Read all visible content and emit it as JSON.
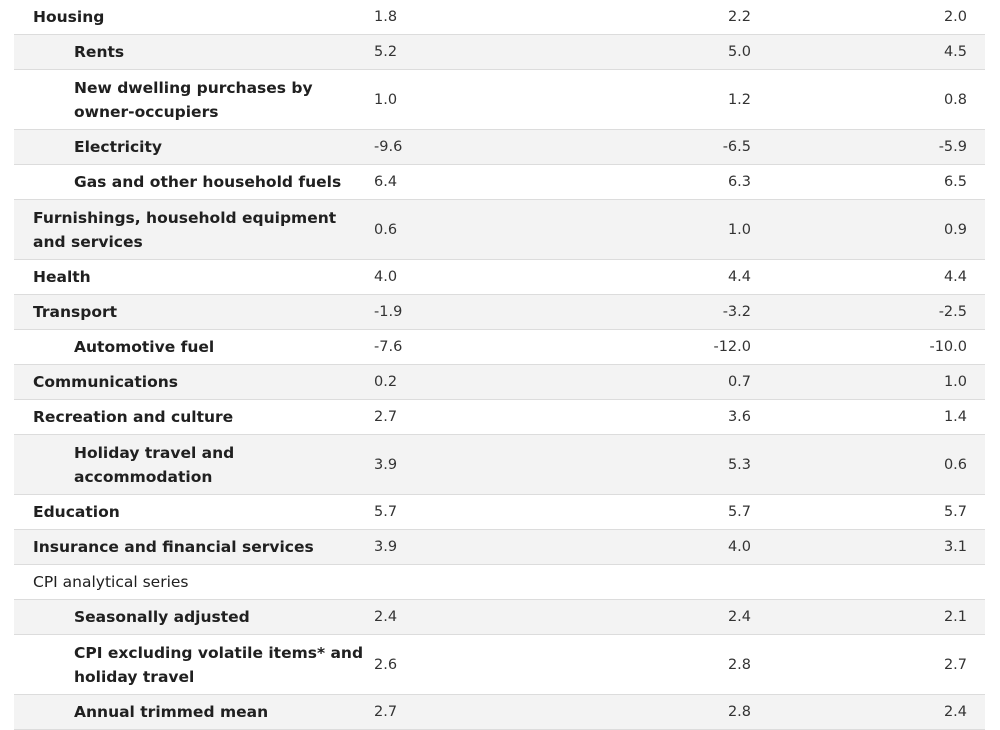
{
  "table": {
    "rows": [
      {
        "label": "Housing",
        "indent": false,
        "bold": true,
        "values": [
          "1.8",
          "2.2",
          "2.0"
        ]
      },
      {
        "label": "Rents",
        "indent": true,
        "bold": true,
        "values": [
          "5.2",
          "5.0",
          "4.5"
        ]
      },
      {
        "label": "New dwelling purchases by owner-occupiers",
        "indent": true,
        "bold": true,
        "values": [
          "1.0",
          "1.2",
          "0.8"
        ]
      },
      {
        "label": "Electricity",
        "indent": true,
        "bold": true,
        "values": [
          "-9.6",
          "-6.5",
          "-5.9"
        ]
      },
      {
        "label": "Gas and other household fuels",
        "indent": true,
        "bold": true,
        "values": [
          "6.4",
          "6.3",
          "6.5"
        ]
      },
      {
        "label": "Furnishings, household equipment and services",
        "indent": false,
        "bold": true,
        "values": [
          "0.6",
          "1.0",
          "0.9"
        ]
      },
      {
        "label": "Health",
        "indent": false,
        "bold": true,
        "values": [
          "4.0",
          "4.4",
          "4.4"
        ]
      },
      {
        "label": "Transport",
        "indent": false,
        "bold": true,
        "values": [
          "-1.9",
          "-3.2",
          "-2.5"
        ]
      },
      {
        "label": "Automotive fuel",
        "indent": true,
        "bold": true,
        "values": [
          "-7.6",
          "-12.0",
          "-10.0"
        ]
      },
      {
        "label": "Communications",
        "indent": false,
        "bold": true,
        "values": [
          "0.2",
          "0.7",
          "1.0"
        ]
      },
      {
        "label": "Recreation and culture",
        "indent": false,
        "bold": true,
        "values": [
          "2.7",
          "3.6",
          "1.4"
        ]
      },
      {
        "label": "Holiday travel and accommodation",
        "indent": true,
        "bold": true,
        "values": [
          "3.9",
          "5.3",
          "0.6"
        ]
      },
      {
        "label": "Education",
        "indent": false,
        "bold": true,
        "values": [
          "5.7",
          "5.7",
          "5.7"
        ]
      },
      {
        "label": "Insurance and financial services",
        "indent": false,
        "bold": true,
        "values": [
          "3.9",
          "4.0",
          "3.1"
        ]
      },
      {
        "label": "CPI analytical series",
        "indent": false,
        "bold": false,
        "values": [
          "",
          "",
          ""
        ]
      },
      {
        "label": "Seasonally adjusted",
        "indent": true,
        "bold": true,
        "values": [
          "2.4",
          "2.4",
          "2.1"
        ]
      },
      {
        "label": "CPI excluding volatile items* and holiday travel",
        "indent": true,
        "bold": true,
        "values": [
          "2.6",
          "2.8",
          "2.7"
        ]
      },
      {
        "label": "Annual trimmed mean",
        "indent": true,
        "bold": true,
        "values": [
          "2.7",
          "2.8",
          "2.4"
        ]
      }
    ]
  }
}
